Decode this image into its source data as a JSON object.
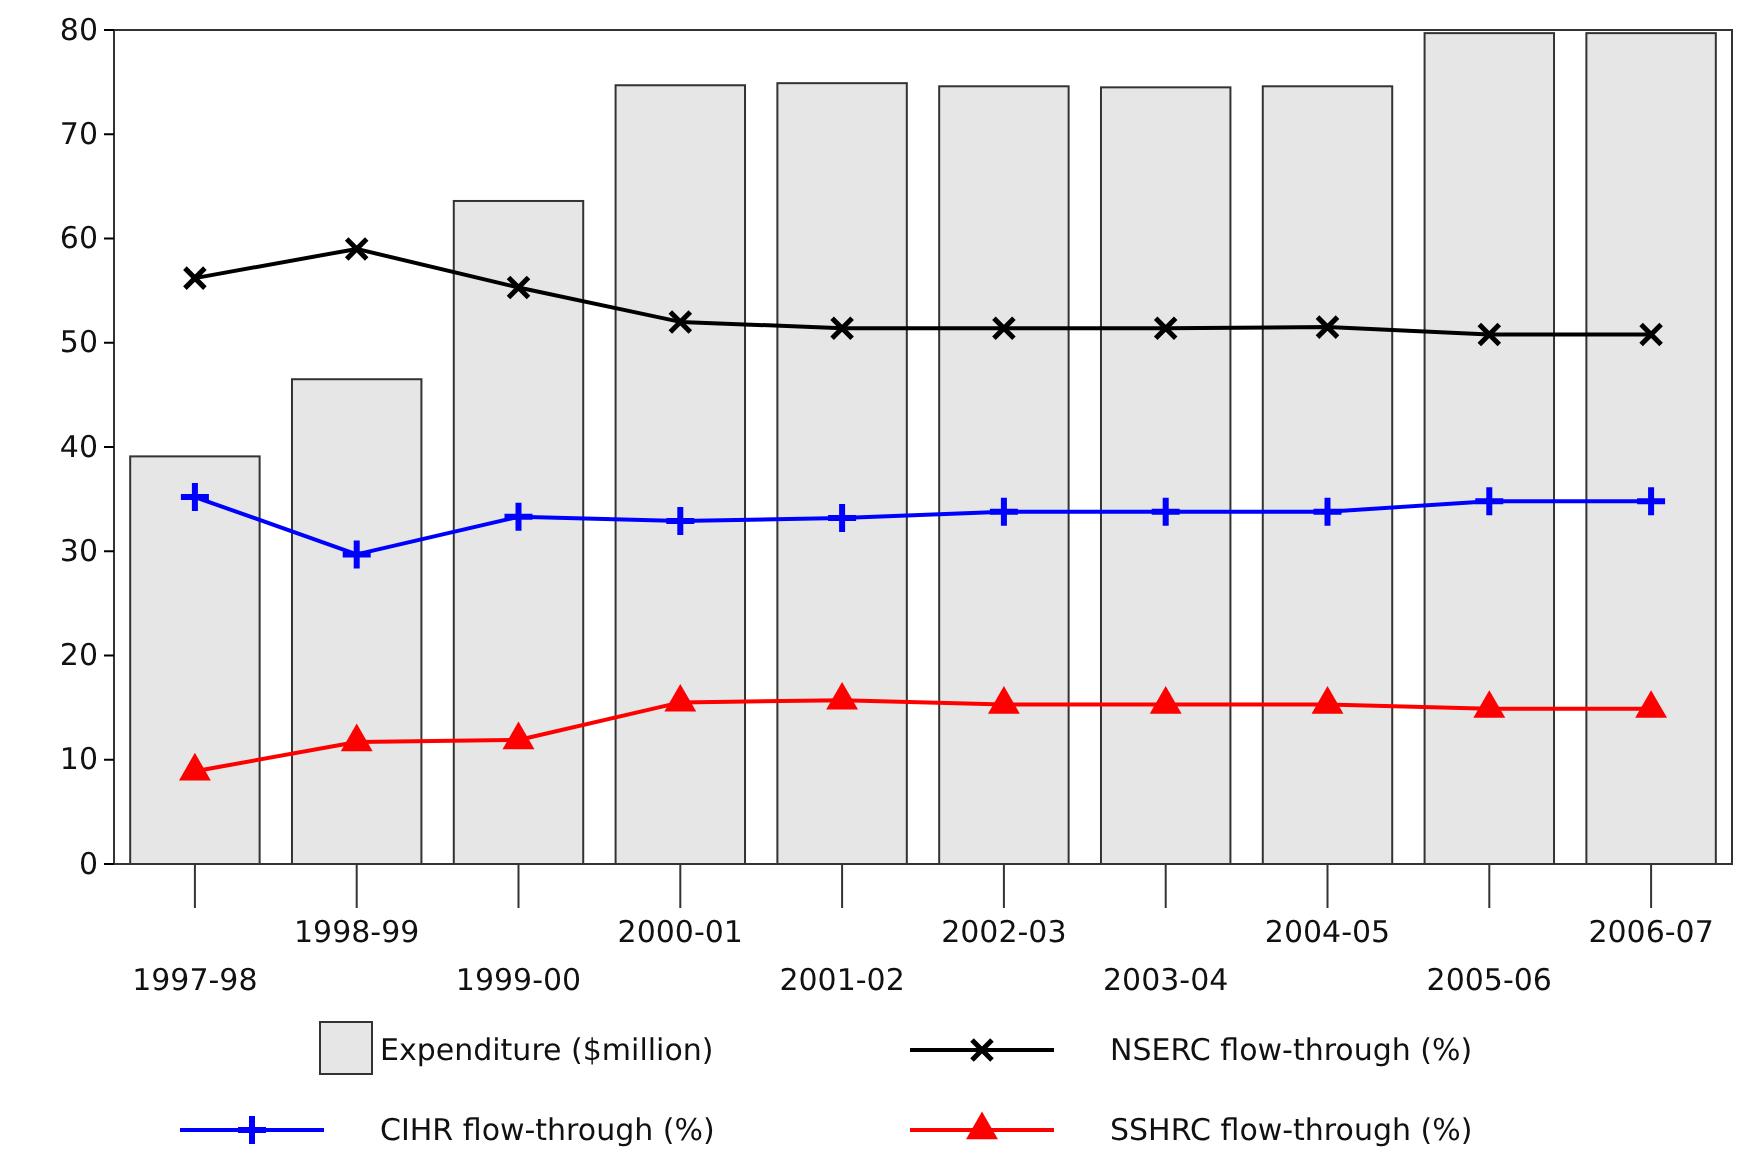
{
  "chart_data": {
    "type": "bar",
    "categories": [
      "1997-98",
      "1998-99",
      "1999-00",
      "2000-01",
      "2001-02",
      "2002-03",
      "2003-04",
      "2004-05",
      "2005-06",
      "2006-07"
    ],
    "ylim": [
      0,
      80
    ],
    "yticks": [
      0,
      10,
      20,
      30,
      40,
      50,
      60,
      70,
      80
    ],
    "grid": false,
    "legend": "bottom",
    "series": [
      {
        "name": "Expenditure ($million)",
        "color": "#e6e6e6",
        "values": [
          39.1,
          46.5,
          63.6,
          74.7,
          74.9,
          74.6,
          74.5,
          74.6,
          79.7,
          79.7
        ]
      },
      {
        "name": "NSERC flow-through (%)",
        "type": "line",
        "color": "#000000",
        "marker": "x",
        "values": [
          56.2,
          59.0,
          55.3,
          52.0,
          51.4,
          51.4,
          51.4,
          51.5,
          50.8,
          50.8
        ]
      },
      {
        "name": "CIHR flow-through (%)",
        "type": "line",
        "color": "#0000ff",
        "marker": "cross",
        "values": [
          35.2,
          29.7,
          33.3,
          32.9,
          33.2,
          33.8,
          33.8,
          33.8,
          34.8,
          34.8
        ]
      },
      {
        "name": "SSHRC flow-through (%)",
        "type": "line",
        "color": "#ff0000",
        "marker": "triangle",
        "values": [
          8.9,
          11.7,
          11.9,
          15.5,
          15.7,
          15.3,
          15.3,
          15.3,
          14.9,
          14.9
        ]
      }
    ]
  }
}
